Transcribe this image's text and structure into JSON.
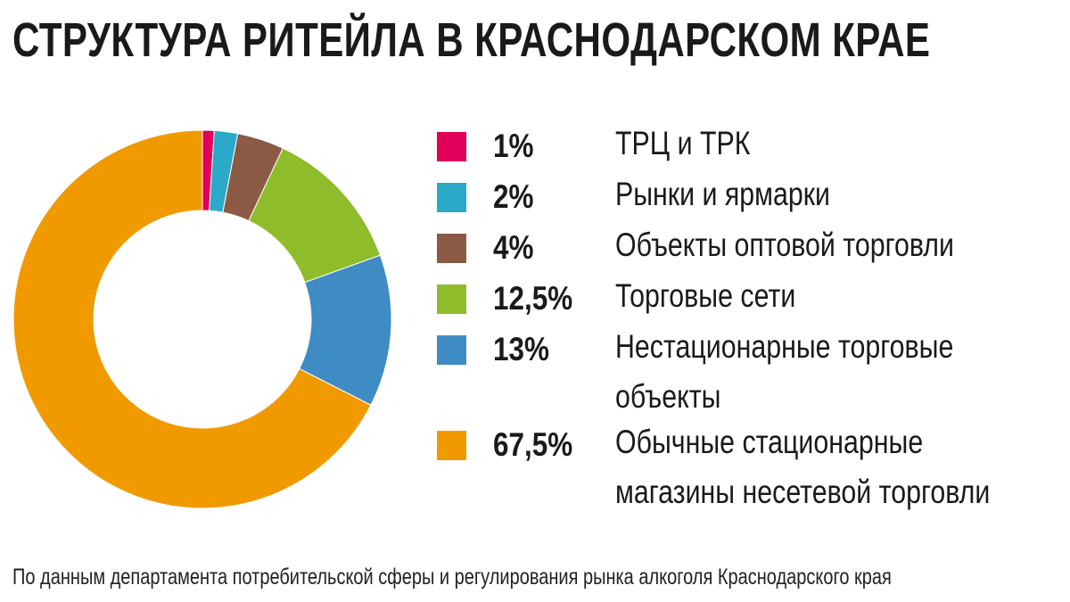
{
  "chart_data": {
    "type": "pie",
    "variant": "donut",
    "title": "СТРУКТУРА РИТЕЙЛА В КРАСНОДАРСКОМ КРАЕ",
    "slices": [
      {
        "label": "ТРЦ и ТРК",
        "value": 1,
        "value_label": "1%",
        "color": "#e2005a",
        "label_lines": [
          "ТРЦ и ТРК"
        ]
      },
      {
        "label": "Рынки и ярмарки",
        "value": 2,
        "value_label": "2%",
        "color": "#2aa9c9",
        "label_lines": [
          "Рынки и ярмарки"
        ]
      },
      {
        "label": "Объекты оптовой торговли",
        "value": 4,
        "value_label": "4%",
        "color": "#8b5a45",
        "label_lines": [
          "Объекты оптовой торговли"
        ]
      },
      {
        "label": "Торговые сети",
        "value": 12.5,
        "value_label": "12,5%",
        "color": "#8fbc2b",
        "label_lines": [
          "Торговые сети"
        ]
      },
      {
        "label": "Нестационарные торговые объекты",
        "value": 13,
        "value_label": "13%",
        "color": "#3f8bc4",
        "label_lines": [
          "Нестационарные торговые",
          "объекты"
        ]
      },
      {
        "label": "Обычные стационарные магазины несетевой торговли",
        "value": 67.5,
        "value_label": "67,5%",
        "color": "#f09a00",
        "label_lines": [
          "Обычные стационарные",
          "магазины несетевой торговли"
        ]
      }
    ],
    "legend_position": "right",
    "source": "По данным департамента потребительской сферы и регулирования рынка алкоголя Краснодарского края"
  }
}
